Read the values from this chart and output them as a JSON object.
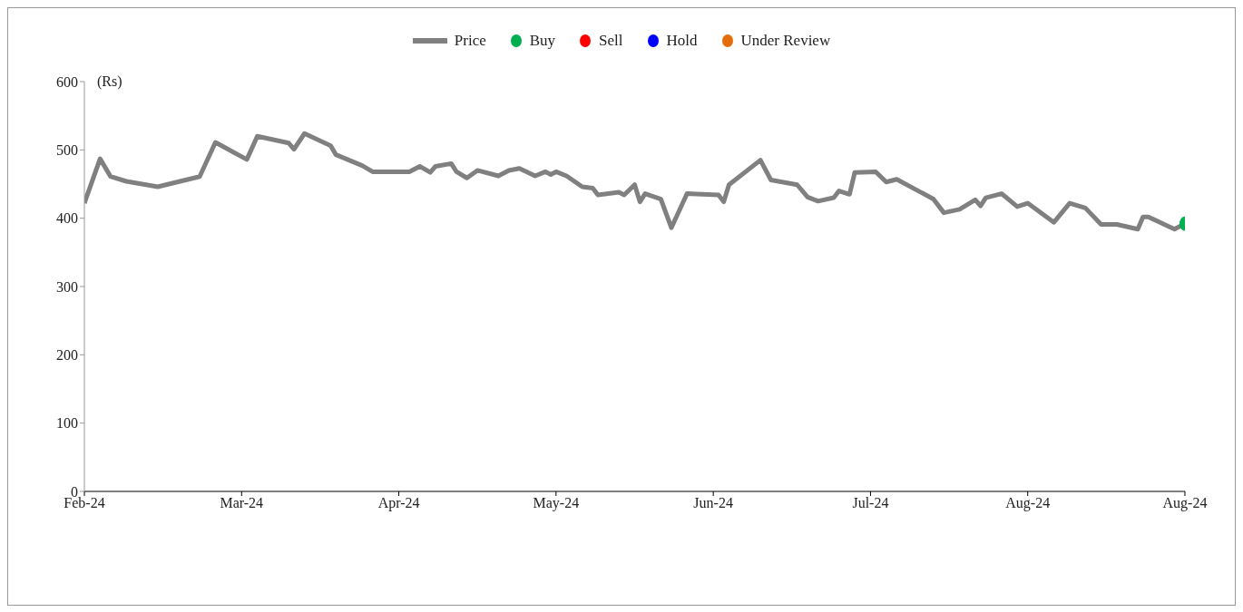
{
  "chart_data": {
    "type": "line",
    "ylabel": "(Rs)",
    "legend": "top",
    "line_style": "solid",
    "xlim": [
      "2024-02-03",
      "2024-08-31"
    ],
    "xticks": [
      {
        "value": "2024-02-03",
        "label": "Feb-24"
      },
      {
        "value": "2024-03-04",
        "label": "Mar-24"
      },
      {
        "value": "2024-04-03",
        "label": "Apr-24"
      },
      {
        "value": "2024-05-03",
        "label": "May-24"
      },
      {
        "value": "2024-06-02",
        "label": "Jun-24"
      },
      {
        "value": "2024-07-02",
        "label": "Jul-24"
      },
      {
        "value": "2024-08-01",
        "label": "Aug-24"
      },
      {
        "value": "2024-08-31",
        "label": "Aug-24"
      }
    ],
    "ylim": [
      0,
      600
    ],
    "yticks": [
      0,
      100,
      200,
      300,
      400,
      500,
      600
    ],
    "x": [
      "2024-02-03",
      "2024-02-06",
      "2024-02-08",
      "2024-02-11",
      "2024-02-17",
      "2024-02-25",
      "2024-02-28",
      "2024-03-05",
      "2024-03-07",
      "2024-03-13",
      "2024-03-14",
      "2024-03-16",
      "2024-03-21",
      "2024-03-22",
      "2024-03-27",
      "2024-03-29",
      "2024-04-05",
      "2024-04-07",
      "2024-04-09",
      "2024-04-10",
      "2024-04-13",
      "2024-04-14",
      "2024-04-16",
      "2024-04-18",
      "2024-04-22",
      "2024-04-24",
      "2024-04-26",
      "2024-04-29",
      "2024-05-01",
      "2024-05-02",
      "2024-05-03",
      "2024-05-05",
      "2024-05-08",
      "2024-05-10",
      "2024-05-11",
      "2024-05-15",
      "2024-05-16",
      "2024-05-18",
      "2024-05-19",
      "2024-05-20",
      "2024-05-23",
      "2024-05-25",
      "2024-05-28",
      "2024-06-03",
      "2024-06-04",
      "2024-06-05",
      "2024-06-11",
      "2024-06-13",
      "2024-06-18",
      "2024-06-20",
      "2024-06-22",
      "2024-06-25",
      "2024-06-26",
      "2024-06-28",
      "2024-06-29",
      "2024-07-03",
      "2024-07-05",
      "2024-07-07",
      "2024-07-14",
      "2024-07-16",
      "2024-07-19",
      "2024-07-22",
      "2024-07-23",
      "2024-07-24",
      "2024-07-27",
      "2024-07-30",
      "2024-08-01",
      "2024-08-06",
      "2024-08-09",
      "2024-08-12",
      "2024-08-15",
      "2024-08-18",
      "2024-08-22",
      "2024-08-23",
      "2024-08-24",
      "2024-08-29",
      "2024-08-31"
    ],
    "series": [
      {
        "name": "Price",
        "color": "#808080",
        "values": [
          422,
          487,
          461,
          454,
          446,
          461,
          511,
          486,
          520,
          510,
          501,
          524,
          506,
          493,
          477,
          468,
          468,
          476,
          467,
          476,
          480,
          468,
          459,
          470,
          462,
          470,
          473,
          462,
          468,
          464,
          468,
          462,
          446,
          444,
          434,
          438,
          434,
          449,
          424,
          436,
          428,
          386,
          436,
          434,
          424,
          449,
          485,
          456,
          449,
          431,
          425,
          430,
          440,
          435,
          467,
          468,
          453,
          457,
          428,
          408,
          413,
          427,
          418,
          430,
          436,
          417,
          422,
          394,
          422,
          415,
          391,
          391,
          384,
          402,
          402,
          384,
          392
        ]
      },
      {
        "name": "Buy",
        "type": "scatter",
        "color": "#00b050",
        "x": [
          "2024-08-31"
        ],
        "values": [
          392
        ]
      },
      {
        "name": "Sell",
        "type": "scatter",
        "color": "#ff0000",
        "values": [
          null,
          null,
          null,
          null,
          null,
          null,
          null,
          null,
          null,
          null,
          null,
          null,
          null,
          null,
          null,
          null,
          null,
          null,
          null,
          null,
          null,
          null,
          null,
          null,
          null,
          null,
          null,
          null,
          null,
          null,
          null,
          null,
          null,
          null,
          null,
          null,
          null,
          null,
          null,
          null,
          null,
          null,
          null,
          null,
          null,
          null,
          null,
          null,
          null,
          null,
          null,
          null,
          null,
          null,
          null,
          null,
          null,
          null,
          null,
          null,
          null,
          null,
          null,
          null,
          null,
          null,
          null,
          null,
          null,
          null,
          null,
          null,
          null,
          null,
          null,
          null,
          null
        ]
      },
      {
        "name": "Hold",
        "type": "scatter",
        "color": "#0000ff",
        "values": [
          null,
          null,
          null,
          null,
          null,
          null,
          null,
          null,
          null,
          null,
          null,
          null,
          null,
          null,
          null,
          null,
          null,
          null,
          null,
          null,
          null,
          null,
          null,
          null,
          null,
          null,
          null,
          null,
          null,
          null,
          null,
          null,
          null,
          null,
          null,
          null,
          null,
          null,
          null,
          null,
          null,
          null,
          null,
          null,
          null,
          null,
          null,
          null,
          null,
          null,
          null,
          null,
          null,
          null,
          null,
          null,
          null,
          null,
          null,
          null,
          null,
          null,
          null,
          null,
          null,
          null,
          null,
          null,
          null,
          null,
          null,
          null,
          null,
          null,
          null,
          null,
          null
        ]
      },
      {
        "name": "Under Review",
        "type": "scatter",
        "color": "#e46c0a",
        "values": [
          null,
          null,
          null,
          null,
          null,
          null,
          null,
          null,
          null,
          null,
          null,
          null,
          null,
          null,
          null,
          null,
          null,
          null,
          null,
          null,
          null,
          null,
          null,
          null,
          null,
          null,
          null,
          null,
          null,
          null,
          null,
          null,
          null,
          null,
          null,
          null,
          null,
          null,
          null,
          null,
          null,
          null,
          null,
          null,
          null,
          null,
          null,
          null,
          null,
          null,
          null,
          null,
          null,
          null,
          null,
          null,
          null,
          null,
          null,
          null,
          null,
          null,
          null,
          null,
          null,
          null,
          null,
          null,
          null,
          null,
          null,
          null,
          null,
          null,
          null,
          null,
          null
        ]
      }
    ]
  }
}
